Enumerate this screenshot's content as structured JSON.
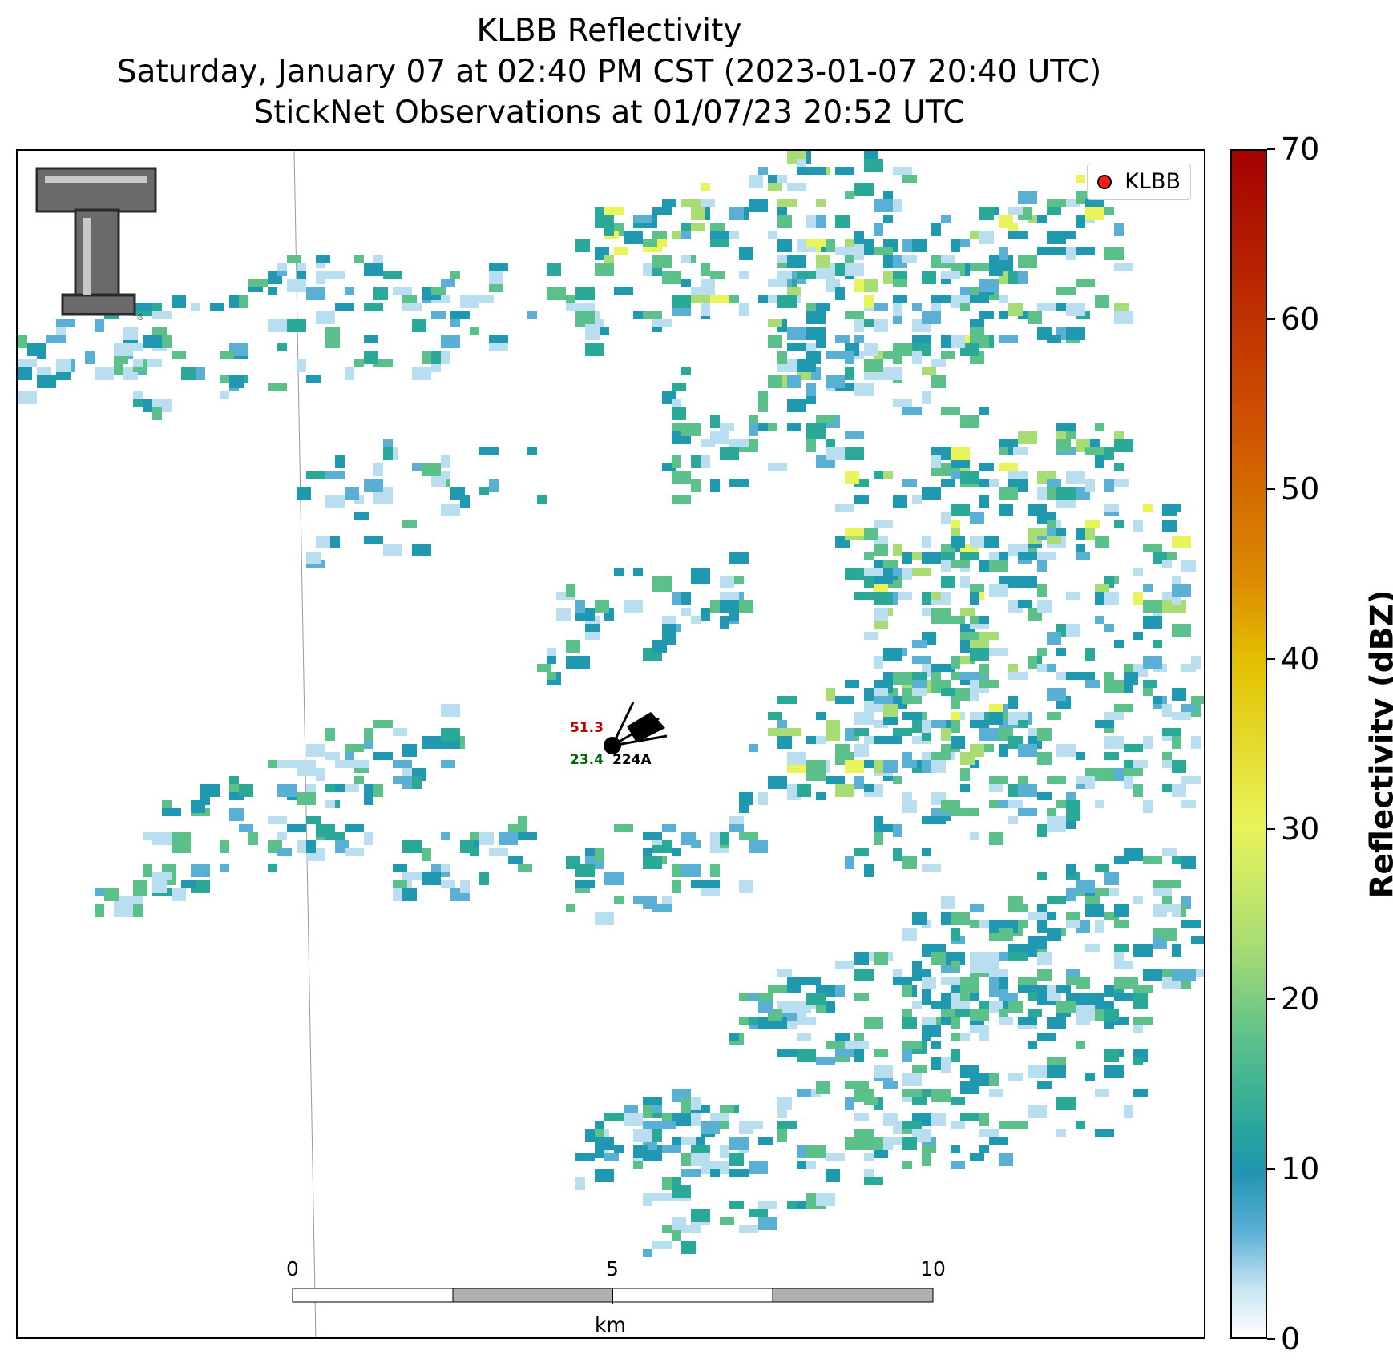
{
  "title": {
    "line1": "KLBB Reflectivity",
    "line2": "Saturday, January 07 at 02:40 PM CST (2023-01-07 20:40 UTC)",
    "line3": "StickNet Observations at 01/07/23 20:52 UTC"
  },
  "legend": {
    "label": "KLBB",
    "marker_color": "#ff1a1a"
  },
  "station": {
    "id": "224A",
    "temperature": "51.3",
    "dewpoint": "23.4",
    "temp_color": "#c00000",
    "dew_color": "#006400"
  },
  "scale_bar": {
    "labels": [
      "0",
      "5",
      "10"
    ],
    "unit": "km"
  },
  "colorbar": {
    "label": "Reflectivity (dBZ)",
    "ticks": [
      "0",
      "10",
      "20",
      "30",
      "40",
      "50",
      "60",
      "70"
    ],
    "range": [
      0,
      70
    ]
  },
  "colors": {
    "light_blue": "#b9def0",
    "mid_blue": "#5ab0d4",
    "teal": "#1f98b0",
    "teal_green": "#2aa898",
    "green": "#5cc08a",
    "light_green": "#a8dc74",
    "yellow": "#e8f45a"
  }
}
